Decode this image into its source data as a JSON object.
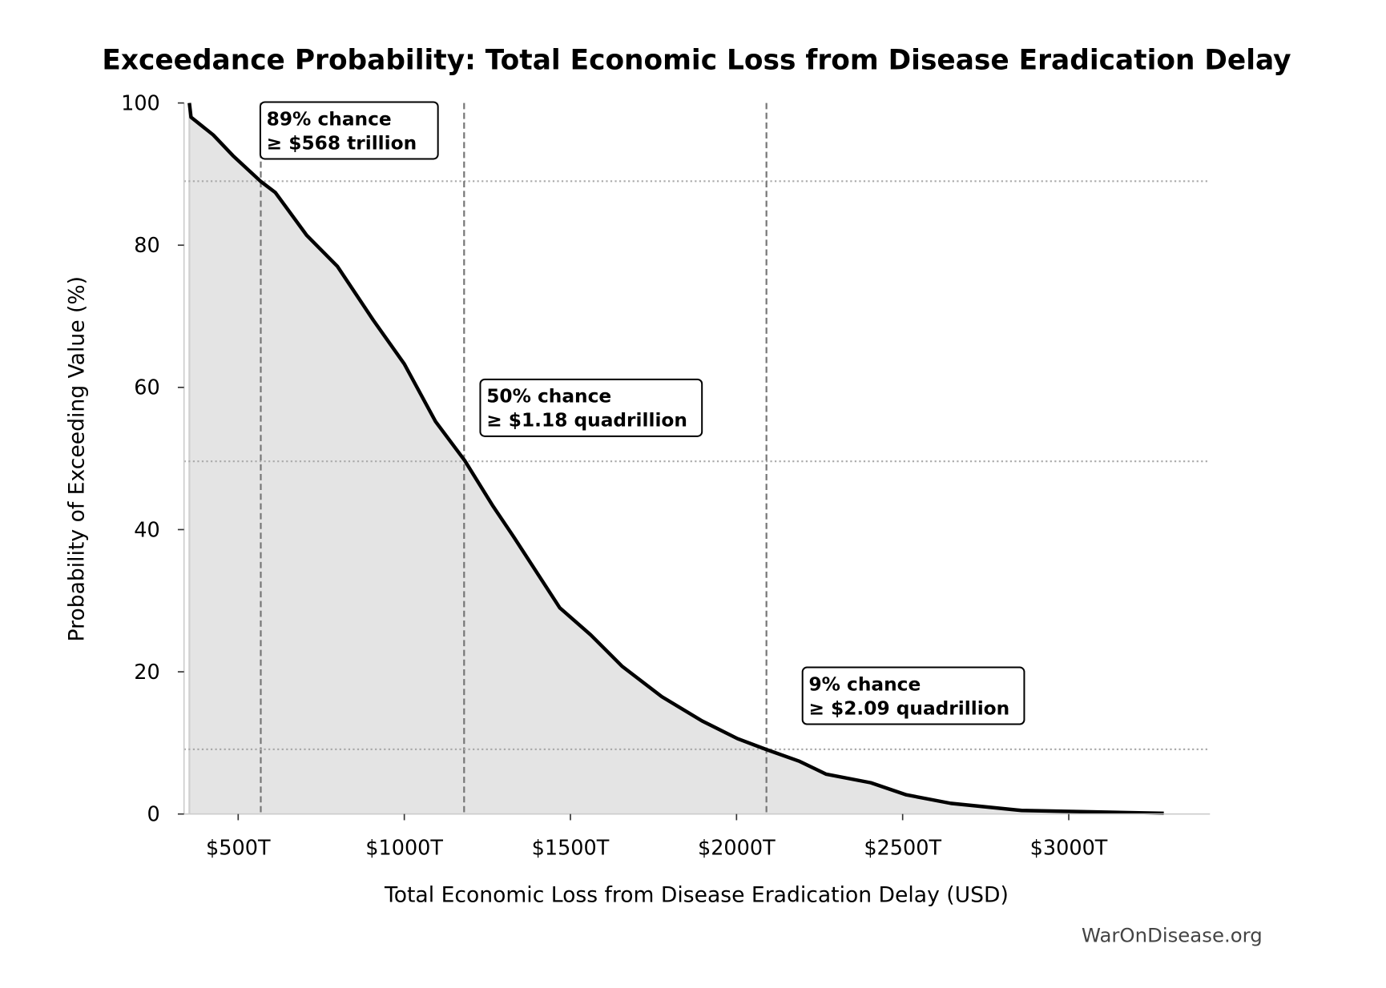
{
  "chart_data": {
    "type": "area",
    "title": "Exceedance Probability: Total Economic Loss from Disease Eradication Delay",
    "xlabel": "Total Economic Loss from Disease Eradication Delay (USD)",
    "ylabel": "Probability of Exceeding Value (%)",
    "xlim": [
      337,
      3425
    ],
    "ylim": [
      0,
      100
    ],
    "x_ticks": [
      500,
      1000,
      1500,
      2000,
      2500,
      3000
    ],
    "x_tick_labels": [
      "$500T",
      "$1000T",
      "$1500T",
      "$2000T",
      "$2500T",
      "$3000T"
    ],
    "y_ticks": [
      0,
      20,
      40,
      60,
      80,
      100
    ],
    "y_tick_labels": [
      "0",
      "20",
      "40",
      "60",
      "80",
      "100"
    ],
    "grid": false,
    "series": [
      {
        "x": [
          353,
          358,
          425,
          484,
          567,
          612,
          706,
          799,
          906,
          1000,
          1094,
          1182,
          1267,
          1329,
          1468,
          1561,
          1655,
          1775,
          1896,
          2003,
          2088,
          2190,
          2270,
          2404,
          2511,
          2645,
          2858,
          3126,
          3286
        ],
        "y": [
          100,
          98,
          95.5,
          92.6,
          89,
          87.4,
          81.4,
          77,
          69.5,
          63.3,
          55.2,
          49.7,
          43.3,
          39,
          29,
          25.2,
          20.8,
          16.5,
          13.1,
          10.6,
          9.1,
          7.4,
          5.6,
          4.4,
          2.7,
          1.5,
          0.5,
          0.25,
          0.1
        ],
        "color": "#000000",
        "fill": "#e4e4e4"
      }
    ],
    "reference_lines": [
      {
        "x": 568,
        "y": 89
      },
      {
        "x": 1180,
        "y": 49.6
      },
      {
        "x": 2090,
        "y": 9.1
      }
    ],
    "annotations": [
      {
        "line1": "89% chance",
        "line2": "≥ $568 trillion",
        "x": 588,
        "y": 99
      },
      {
        "x": 1250,
        "y": 60,
        "line1": "50% chance",
        "line2": "≥ $1.18 quadrillion"
      },
      {
        "x": 2220,
        "y": 19.5,
        "line1": "9% chance",
        "line2": "≥ $2.09 quadrillion"
      }
    ]
  },
  "watermark": "WarOnDisease.org"
}
